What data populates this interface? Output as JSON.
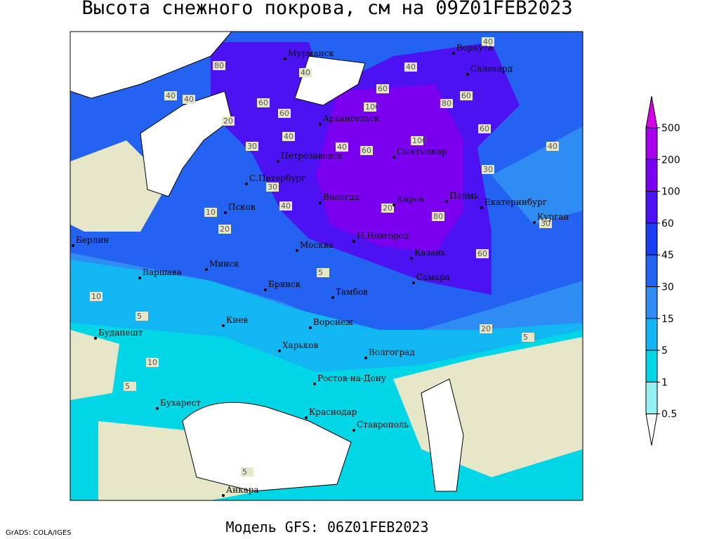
{
  "header": {
    "title": "Высота снежного покрова, см на 09Z01FEB2023"
  },
  "footer": {
    "credit": "GrADS: COLA/IGES",
    "model": "Модель GFS: 06Z01FEB2023"
  },
  "cities": [
    "Мурманск",
    "Воркута",
    "Салехард",
    "Архангельск",
    "Сыктывкар",
    "Петрозаводск",
    "С.Петербург",
    "Вологда",
    "Киров",
    "Пермь",
    "Екатеринбург",
    "Курган",
    "Псков",
    "Берлин",
    "Минск",
    "Москва",
    "Н.Новгород",
    "Казань",
    "Варшава",
    "Брянск",
    "Тамбов",
    "Самара",
    "Киев",
    "Воронеж",
    "Будапешт",
    "Харьков",
    "Волгоград",
    "Ростов-на-Дону",
    "Бухарест",
    "Краснодар",
    "Ставрополь",
    "Анкара"
  ],
  "contour_labels": [
    80,
    40,
    40,
    60,
    40,
    60,
    100,
    80,
    60,
    40,
    20,
    40,
    60,
    30,
    40,
    60,
    100,
    40,
    60,
    30,
    40,
    30,
    20,
    60,
    80,
    40,
    20,
    30,
    10,
    5,
    10,
    20,
    5,
    10,
    5,
    5,
    5
  ],
  "legend": {
    "levels": [
      500,
      200,
      100,
      60,
      45,
      30,
      15,
      5,
      1,
      0.5
    ],
    "colors": [
      "#d400e8",
      "#a600ec",
      "#7c00f0",
      "#4c12f2",
      "#1a3cf2",
      "#2462f2",
      "#2e8cf2",
      "#12b6f2",
      "#00d6e6",
      "#96f2f2",
      "#ffffff"
    ]
  }
}
